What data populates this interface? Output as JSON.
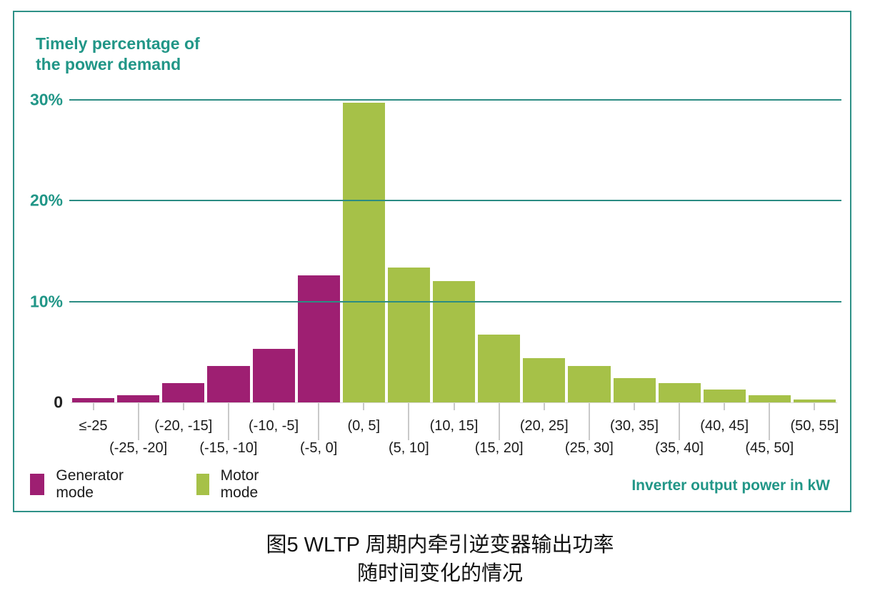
{
  "figure": {
    "title_lines": [
      "Timely percentage of",
      "the power demand"
    ],
    "caption_lines": [
      "图5 WLTP 周期内牵引逆变器输出功率",
      "随时间变化的情况"
    ]
  },
  "colors": {
    "teal_border": "#2E9187",
    "teal_gridline": "#2B8C83",
    "teal_text": "#219687",
    "generator_magenta": "#9E1F72",
    "motor_green": "#A6C148",
    "tick_gray": "#C9C9C9",
    "label_dark": "#1A1A1A"
  },
  "chart_data": {
    "type": "bar",
    "title": "Timely percentage of the power demand",
    "xlabel": "Inverter output power in kW",
    "ylabel": "Timely percentage of the power demand",
    "ylim": [
      0,
      30
    ],
    "yticks": [
      0,
      10,
      20,
      30
    ],
    "ytick_labels": [
      "0",
      "10%",
      "20%",
      "30%"
    ],
    "grid": "horizontal teal lines at 10/20/30, drawn over bars",
    "legend_position": "bottom-left",
    "categories": [
      "≤-25",
      "(-25, -20]",
      "(-20, -15]",
      "(-15, -10]",
      "(-10, -5]",
      "(-5, 0]",
      "(0, 5]",
      "(5, 10]",
      "(10, 15]",
      "(15, 20]",
      "(20, 25]",
      "(25, 30]",
      "(30, 35]",
      "(35, 40]",
      "(40, 45]",
      "(45, 50]",
      "(50, 55]"
    ],
    "values": [
      0.4,
      0.7,
      1.9,
      3.6,
      5.3,
      12.6,
      29.7,
      13.4,
      12.0,
      6.7,
      4.4,
      3.6,
      2.4,
      1.9,
      1.3,
      0.7,
      0.3
    ],
    "series": [
      {
        "name": "Generator mode",
        "color": "#9E1F72",
        "category_indices": [
          0,
          1,
          2,
          3,
          4,
          5
        ]
      },
      {
        "name": "Motor mode",
        "color": "#A6C148",
        "category_indices": [
          6,
          7,
          8,
          9,
          10,
          11,
          12,
          13,
          14,
          15,
          16
        ]
      }
    ]
  }
}
